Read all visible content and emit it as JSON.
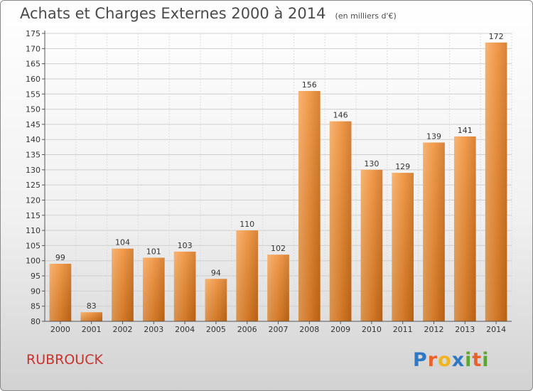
{
  "header": {
    "title": "Achats et Charges Externes 2000 à 2014",
    "subtitle": "(en milliers d'€)"
  },
  "footer": {
    "commune": "RUBROUCK",
    "logo_text": "Proxiti",
    "logo_letters": [
      {
        "char": "P",
        "color": "#2f78c4"
      },
      {
        "char": "r",
        "color": "#e8622a"
      },
      {
        "char": "o",
        "color": "#f2b320"
      },
      {
        "char": "x",
        "color": "#2f78c4"
      },
      {
        "char": "i",
        "color": "#5aa832"
      },
      {
        "char": "t",
        "color": "#e8622a"
      },
      {
        "char": "i",
        "color": "#5aa832"
      }
    ]
  },
  "chart_data": {
    "type": "bar",
    "title": "Achats et Charges Externes 2000 à 2014",
    "subtitle": "(en milliers d'€)",
    "categories": [
      "2000",
      "2001",
      "2002",
      "2003",
      "2004",
      "2005",
      "2006",
      "2007",
      "2008",
      "2009",
      "2010",
      "2011",
      "2012",
      "2013",
      "2014"
    ],
    "values": [
      99,
      83,
      104,
      101,
      103,
      94,
      110,
      102,
      156,
      146,
      130,
      129,
      139,
      141,
      172
    ],
    "ylim": [
      80,
      175
    ],
    "yticks": [
      80,
      85,
      90,
      95,
      100,
      105,
      110,
      115,
      120,
      125,
      130,
      135,
      140,
      145,
      150,
      155,
      160,
      165,
      170,
      175
    ],
    "grid": true,
    "bar_color": "#ef8a2e",
    "xlabel": "",
    "ylabel": ""
  }
}
